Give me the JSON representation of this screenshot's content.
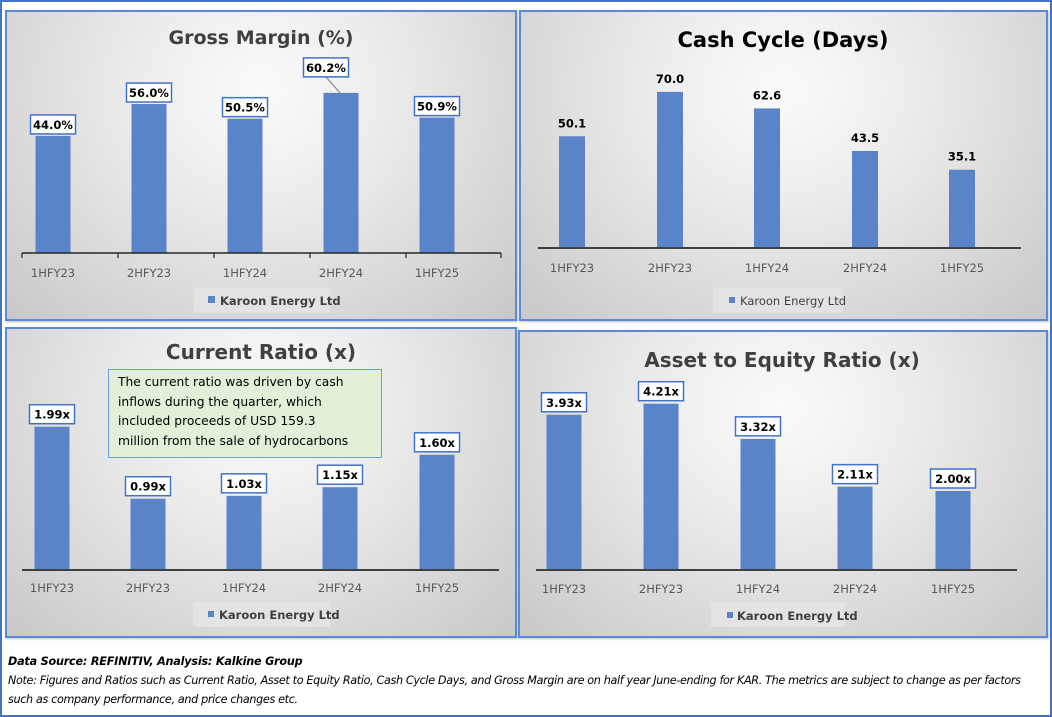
{
  "chart_data": [
    {
      "type": "bar",
      "title": "Gross Margin (%)",
      "categories": [
        "1HFY23",
        "2HFY23",
        "1HFY24",
        "2HFY24",
        "1HFY25"
      ],
      "series": [
        {
          "name": "Karoon Energy Ltd",
          "values": [
            44.0,
            56.0,
            50.5,
            60.2,
            50.9
          ]
        }
      ],
      "data_labels": [
        "44.0%",
        "56.0%",
        "50.5%",
        "60.2%",
        "50.9%"
      ],
      "xlabel": "",
      "ylabel": "",
      "ylim": [
        0,
        70
      ],
      "grid": false,
      "legend": "bottom",
      "bar_color": "#5B84C8",
      "label_boxed": true
    },
    {
      "type": "bar",
      "title": "Cash Cycle (Days)",
      "categories": [
        "1HFY23",
        "2HFY23",
        "1HFY24",
        "2HFY24",
        "1HFY25"
      ],
      "series": [
        {
          "name": "Karoon Energy Ltd",
          "values": [
            50.1,
            70.0,
            62.6,
            43.5,
            35.1
          ]
        }
      ],
      "data_labels": [
        "50.1",
        "70.0",
        "62.6",
        "43.5",
        "35.1"
      ],
      "xlabel": "",
      "ylabel": "",
      "ylim": [
        0,
        80
      ],
      "grid": false,
      "legend": "bottom",
      "bar_color": "#5B84C8",
      "label_boxed": false
    },
    {
      "type": "bar",
      "title": "Current Ratio (x)",
      "categories": [
        "1HFY23",
        "2HFY23",
        "1HFY24",
        "2HFY24",
        "1HFY25"
      ],
      "series": [
        {
          "name": "Karoon Energy Ltd",
          "values": [
            1.99,
            0.99,
            1.03,
            1.15,
            1.6
          ]
        }
      ],
      "data_labels": [
        "1.99x",
        "0.99x",
        "1.03x",
        "1.15x",
        "1.60x"
      ],
      "xlabel": "",
      "ylabel": "",
      "ylim": [
        0,
        2.5
      ],
      "grid": false,
      "legend": "bottom",
      "bar_color": "#5B84C8",
      "label_boxed": true,
      "annotation": "The current ratio was driven by cash inflows during the quarter, which included proceeds of USD 159.3 million from the sale of hydrocarbons",
      "annotation_lines": [
        "The current ratio was driven by cash",
        "inflows during the quarter, which",
        "included proceeds of USD 159.3",
        "million from the sale of hydrocarbons"
      ]
    },
    {
      "type": "bar",
      "title": "Asset to Equity Ratio (x)",
      "categories": [
        "1HFY23",
        "2HFY23",
        "1HFY24",
        "2HFY24",
        "1HFY25"
      ],
      "series": [
        {
          "name": "Karoon Energy Ltd",
          "values": [
            3.93,
            4.21,
            3.32,
            2.11,
            2.0
          ]
        }
      ],
      "data_labels": [
        "3.93x",
        "4.21x",
        "3.32x",
        "2.11x",
        "2.00x"
      ],
      "xlabel": "",
      "ylabel": "",
      "ylim": [
        0,
        5
      ],
      "grid": false,
      "legend": "bottom",
      "bar_color": "#5B84C8",
      "label_boxed": true
    }
  ],
  "footer": {
    "source": "Data Source: REFINITIV, Analysis: Kalkine Group",
    "note": "Note: Figures and Ratios such as Current Ratio, Asset to Equity Ratio, Cash Cycle Days, and Gross Margin are on half year June-ending for KAR. The metrics are subject to change as per factors such as company performance, and price changes etc."
  },
  "colors": {
    "bar": "#5B84C8",
    "border": "#4472C4",
    "annotation_bg": "#E2F0D9",
    "title": "#404040"
  }
}
